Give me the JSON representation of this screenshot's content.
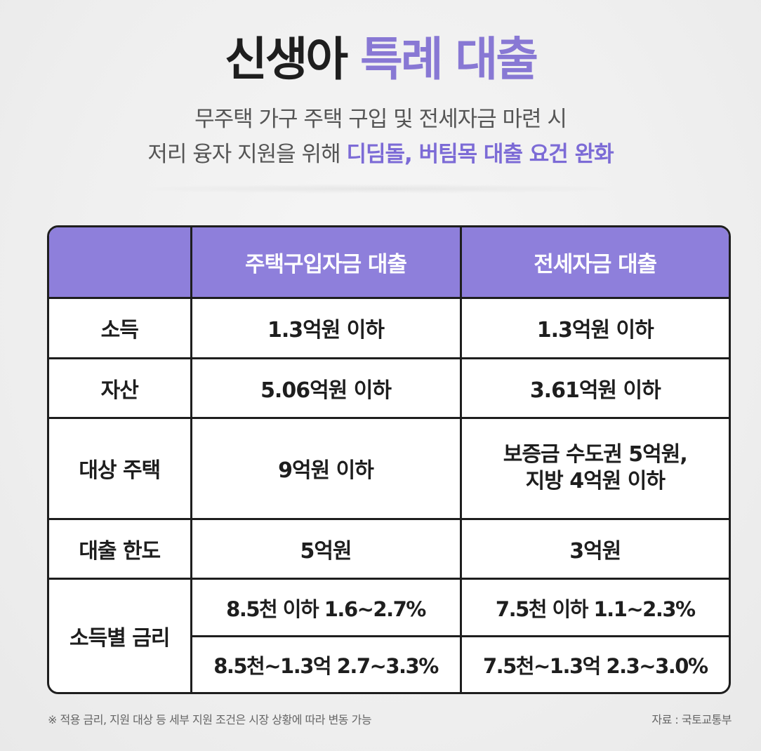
{
  "title": {
    "part1": "신생아",
    "part2": "특례 대출"
  },
  "subtitle": {
    "line1": "무주택 가구 주택 구입 및 전세자금 마련 시",
    "line2_plain": "저리 융자 지원을 위해 ",
    "line2_highlight": "디딤돌, 버팀목 대출 요건 완화"
  },
  "table": {
    "header": {
      "corner": "",
      "col1": "주택구입자금 대출",
      "col2": "전세자금 대출"
    },
    "rows": [
      {
        "label": "소득",
        "col1": "1.3억원 이하",
        "col2": "1.3억원 이하"
      },
      {
        "label": "자산",
        "col1": "5.06억원 이하",
        "col2": "3.61억원 이하"
      },
      {
        "label": "대상 주택",
        "col1": "9억원 이하",
        "col2_line1": "보증금 수도권 5억원,",
        "col2_line2": "지방 4억원 이하"
      },
      {
        "label": "대출 한도",
        "col1": "5억원",
        "col2": "3억원"
      }
    ],
    "rate": {
      "label": "소득별 금리",
      "row1": {
        "col1": "8.5천 이하 1.6~2.7%",
        "col2": "7.5천 이하 1.1~2.3%"
      },
      "row2": {
        "col1": "8.5천~1.3억 2.7~3.3%",
        "col2": "7.5천~1.3억 2.3~3.0%"
      }
    }
  },
  "footnote": "※ 적용 금리, 지원 대상 등 세부 지원 조건은 시장 상황에 따라 변동 가능",
  "source": "자료 : 국토교통부",
  "colors": {
    "accent": "#8878d4",
    "header_bg": "#8e7fdb",
    "border": "#1e1e1e"
  }
}
